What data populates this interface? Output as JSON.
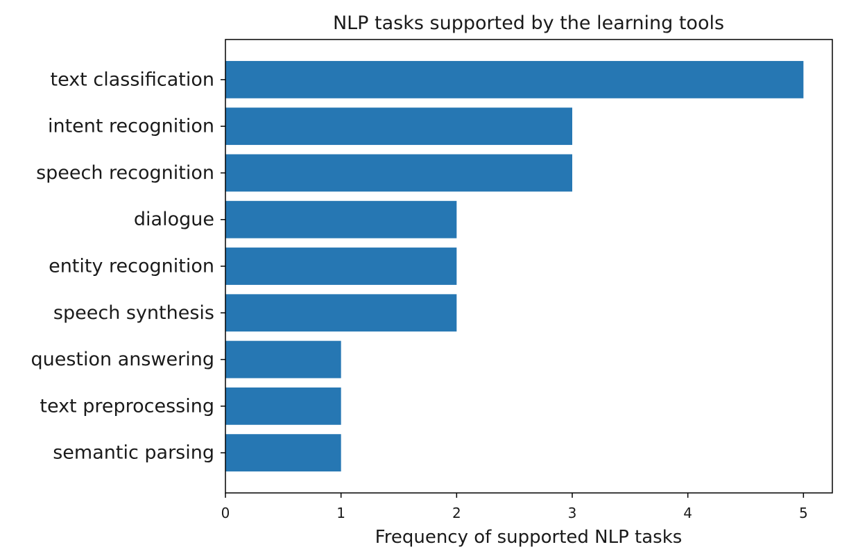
{
  "chart_data": {
    "type": "bar",
    "orientation": "horizontal",
    "title": "NLP tasks supported by the learning tools",
    "xlabel": "Frequency of supported NLP tasks",
    "ylabel": "",
    "categories": [
      "text classification",
      "intent recognition",
      "speech recognition",
      "dialogue",
      "entity recognition",
      "speech synthesis",
      "question answering",
      "text preprocessing",
      "semantic parsing"
    ],
    "values": [
      5,
      3,
      3,
      2,
      2,
      2,
      1,
      1,
      1
    ],
    "xlim": [
      0,
      5.25
    ],
    "xticks": [
      "0",
      "1",
      "2",
      "3",
      "4",
      "5"
    ],
    "grid": false,
    "legend": "none",
    "colors": {
      "bar": "#2677b3",
      "axis": "#000000",
      "text": "#1a1a1a"
    }
  }
}
